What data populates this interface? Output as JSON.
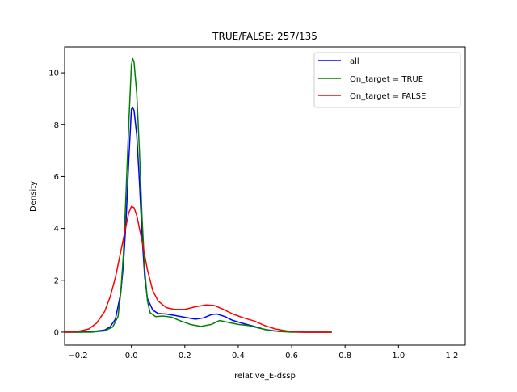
{
  "chart_data": {
    "type": "line",
    "title": "TRUE/FALSE: 257/135",
    "xlabel": "relative_E-dssp",
    "ylabel": "Density",
    "xlim": [
      -0.25,
      1.25
    ],
    "ylim": [
      -0.5,
      11.0
    ],
    "xticks": [
      -0.2,
      0.0,
      0.2,
      0.4,
      0.6,
      0.8,
      1.0,
      1.2
    ],
    "xtick_labels": [
      "−0.2",
      "0.0",
      "0.2",
      "0.4",
      "0.6",
      "0.8",
      "1.0",
      "1.2"
    ],
    "yticks": [
      0,
      2,
      4,
      6,
      8,
      10
    ],
    "ytick_labels": [
      "0",
      "2",
      "4",
      "6",
      "8",
      "10"
    ],
    "grid": false,
    "legend_position": "top-right",
    "series": [
      {
        "name": "all",
        "color": "#0000ff",
        "points": [
          [
            -0.25,
            0.0
          ],
          [
            -0.2,
            0.0
          ],
          [
            -0.15,
            0.02
          ],
          [
            -0.1,
            0.08
          ],
          [
            -0.08,
            0.2
          ],
          [
            -0.06,
            0.5
          ],
          [
            -0.04,
            1.5
          ],
          [
            -0.03,
            2.6
          ],
          [
            -0.02,
            4.3
          ],
          [
            -0.01,
            6.6
          ],
          [
            0.0,
            8.6
          ],
          [
            0.005,
            8.65
          ],
          [
            0.01,
            8.55
          ],
          [
            0.02,
            7.6
          ],
          [
            0.03,
            5.8
          ],
          [
            0.04,
            3.7
          ],
          [
            0.05,
            2.1
          ],
          [
            0.06,
            1.3
          ],
          [
            0.08,
            0.85
          ],
          [
            0.1,
            0.72
          ],
          [
            0.13,
            0.7
          ],
          [
            0.16,
            0.65
          ],
          [
            0.2,
            0.57
          ],
          [
            0.24,
            0.5
          ],
          [
            0.27,
            0.55
          ],
          [
            0.3,
            0.68
          ],
          [
            0.32,
            0.7
          ],
          [
            0.35,
            0.6
          ],
          [
            0.38,
            0.45
          ],
          [
            0.42,
            0.33
          ],
          [
            0.46,
            0.22
          ],
          [
            0.5,
            0.1
          ],
          [
            0.55,
            0.03
          ],
          [
            0.6,
            0.01
          ],
          [
            0.65,
            0.0
          ],
          [
            0.75,
            0.0
          ]
        ]
      },
      {
        "name": "On_target = TRUE",
        "color": "#008000",
        "points": [
          [
            -0.25,
            0.0
          ],
          [
            -0.2,
            0.0
          ],
          [
            -0.15,
            0.0
          ],
          [
            -0.1,
            0.05
          ],
          [
            -0.07,
            0.2
          ],
          [
            -0.05,
            0.6
          ],
          [
            -0.04,
            1.5
          ],
          [
            -0.03,
            3.0
          ],
          [
            -0.02,
            5.4
          ],
          [
            -0.01,
            8.0
          ],
          [
            0.0,
            10.3
          ],
          [
            0.005,
            10.55
          ],
          [
            0.01,
            10.4
          ],
          [
            0.02,
            9.2
          ],
          [
            0.03,
            7.0
          ],
          [
            0.04,
            4.4
          ],
          [
            0.05,
            2.4
          ],
          [
            0.06,
            1.2
          ],
          [
            0.07,
            0.75
          ],
          [
            0.09,
            0.6
          ],
          [
            0.12,
            0.62
          ],
          [
            0.15,
            0.58
          ],
          [
            0.18,
            0.45
          ],
          [
            0.22,
            0.3
          ],
          [
            0.26,
            0.22
          ],
          [
            0.3,
            0.3
          ],
          [
            0.33,
            0.45
          ],
          [
            0.36,
            0.38
          ],
          [
            0.4,
            0.3
          ],
          [
            0.44,
            0.25
          ],
          [
            0.48,
            0.15
          ],
          [
            0.52,
            0.06
          ],
          [
            0.56,
            0.02
          ],
          [
            0.6,
            0.0
          ],
          [
            0.75,
            0.0
          ]
        ]
      },
      {
        "name": "On_target = FALSE",
        "color": "#ff0000",
        "points": [
          [
            -0.25,
            0.0
          ],
          [
            -0.2,
            0.03
          ],
          [
            -0.16,
            0.12
          ],
          [
            -0.13,
            0.35
          ],
          [
            -0.1,
            0.8
          ],
          [
            -0.08,
            1.35
          ],
          [
            -0.06,
            2.1
          ],
          [
            -0.04,
            3.1
          ],
          [
            -0.02,
            4.1
          ],
          [
            -0.01,
            4.6
          ],
          [
            0.0,
            4.85
          ],
          [
            0.01,
            4.8
          ],
          [
            0.02,
            4.5
          ],
          [
            0.04,
            3.5
          ],
          [
            0.06,
            2.4
          ],
          [
            0.08,
            1.6
          ],
          [
            0.1,
            1.2
          ],
          [
            0.13,
            0.95
          ],
          [
            0.16,
            0.88
          ],
          [
            0.2,
            0.88
          ],
          [
            0.24,
            0.98
          ],
          [
            0.28,
            1.05
          ],
          [
            0.31,
            1.03
          ],
          [
            0.34,
            0.9
          ],
          [
            0.38,
            0.7
          ],
          [
            0.42,
            0.55
          ],
          [
            0.46,
            0.43
          ],
          [
            0.5,
            0.25
          ],
          [
            0.54,
            0.12
          ],
          [
            0.58,
            0.05
          ],
          [
            0.62,
            0.01
          ],
          [
            0.65,
            0.0
          ],
          [
            0.75,
            0.0
          ]
        ]
      }
    ]
  }
}
